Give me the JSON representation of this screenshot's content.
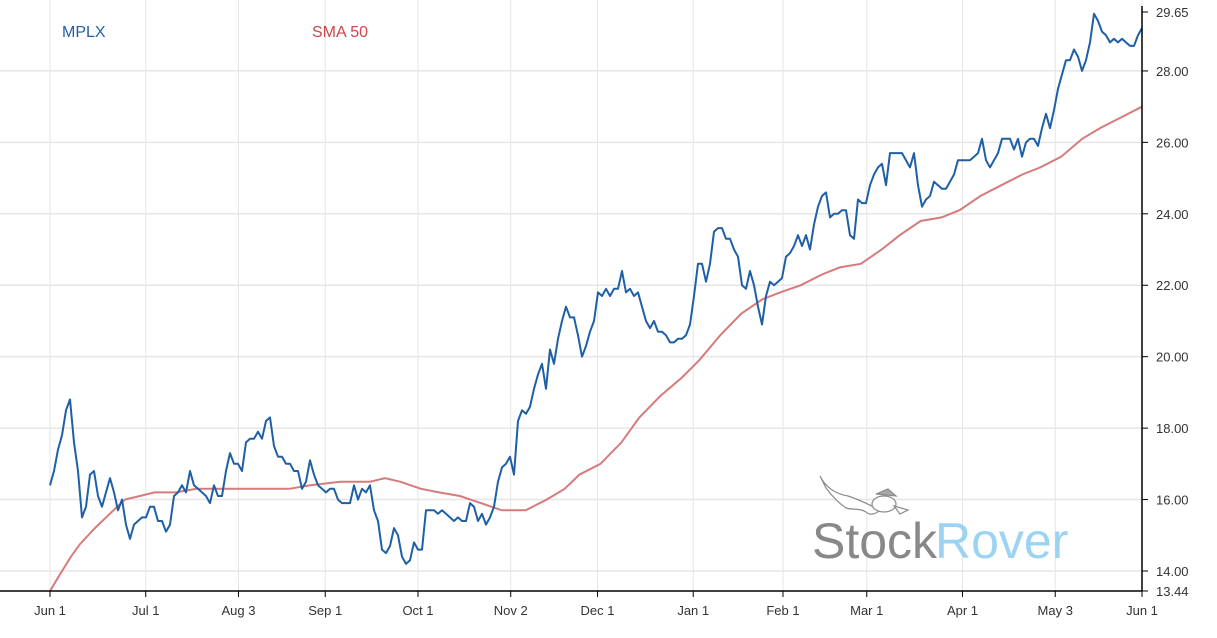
{
  "chart_data": {
    "type": "line",
    "title": "",
    "xlabel": "",
    "ylabel": "",
    "ylim": [
      13.44,
      29.65
    ],
    "xlim_days": [
      0,
      365
    ],
    "grid": true,
    "legend": {
      "placement": "top-left",
      "entries": [
        "MPLX",
        "SMA 50"
      ]
    },
    "x_ticks": [
      {
        "label": "Jun 1",
        "day": 0
      },
      {
        "label": "Jul 1",
        "day": 32
      },
      {
        "label": "Aug 3",
        "day": 63
      },
      {
        "label": "Sep 1",
        "day": 92
      },
      {
        "label": "Oct 1",
        "day": 123
      },
      {
        "label": "Nov 2",
        "day": 154
      },
      {
        "label": "Dec 1",
        "day": 183
      },
      {
        "label": "Jan 1",
        "day": 215
      },
      {
        "label": "Feb 1",
        "day": 245
      },
      {
        "label": "Mar 1",
        "day": 273
      },
      {
        "label": "Apr 1",
        "day": 305
      },
      {
        "label": "May 3",
        "day": 336
      },
      {
        "label": "Jun 1",
        "day": 365
      }
    ],
    "y_ticks": [
      {
        "label": "13.44",
        "value": 13.44
      },
      {
        "label": "14.00",
        "value": 14
      },
      {
        "label": "16.00",
        "value": 16
      },
      {
        "label": "18.00",
        "value": 18
      },
      {
        "label": "20.00",
        "value": 20
      },
      {
        "label": "22.00",
        "value": 22
      },
      {
        "label": "24.00",
        "value": 24
      },
      {
        "label": "26.00",
        "value": 26
      },
      {
        "label": "28.00",
        "value": 28
      },
      {
        "label": "29.65",
        "value": 29.65
      }
    ],
    "series": [
      {
        "name": "MPLX",
        "color": "#1f5fa6",
        "values": [
          16.4,
          16.8,
          17.4,
          17.8,
          18.5,
          18.8,
          17.6,
          16.8,
          15.5,
          15.8,
          16.7,
          16.8,
          16.1,
          15.8,
          16.2,
          16.6,
          16.2,
          15.7,
          16.0,
          15.3,
          14.9,
          15.3,
          15.4,
          15.5,
          15.5,
          15.8,
          15.8,
          15.4,
          15.4,
          15.1,
          15.3,
          16.1,
          16.2,
          16.4,
          16.2,
          16.8,
          16.4,
          16.3,
          16.2,
          16.1,
          15.9,
          16.4,
          16.1,
          16.1,
          16.8,
          17.3,
          17.0,
          17.0,
          16.8,
          17.6,
          17.7,
          17.7,
          17.9,
          17.7,
          18.2,
          18.3,
          17.5,
          17.2,
          17.2,
          17.0,
          17.0,
          16.8,
          16.8,
          16.3,
          16.5,
          17.1,
          16.7,
          16.4,
          16.3,
          16.2,
          16.3,
          16.3,
          16.0,
          15.9,
          15.9,
          15.9,
          16.4,
          16.0,
          16.3,
          16.2,
          16.4,
          15.7,
          15.4,
          14.6,
          14.5,
          14.7,
          15.2,
          15.0,
          14.4,
          14.2,
          14.3,
          14.8,
          14.6,
          14.6,
          15.7,
          15.7,
          15.7,
          15.6,
          15.7,
          15.6,
          15.5,
          15.4,
          15.5,
          15.4,
          15.4,
          15.9,
          15.8,
          15.4,
          15.6,
          15.3,
          15.5,
          15.8,
          16.5,
          16.9,
          17.0,
          17.2,
          16.7,
          18.2,
          18.5,
          18.4,
          18.6,
          19.1,
          19.5,
          19.8,
          19.1,
          20.2,
          19.8,
          20.5,
          21.0,
          21.4,
          21.1,
          21.1,
          20.6,
          20.0,
          20.3,
          20.7,
          21.0,
          21.8,
          21.7,
          21.9,
          21.7,
          21.9,
          21.9,
          22.4,
          21.8,
          21.9,
          21.7,
          21.8,
          21.4,
          21.0,
          20.8,
          21.0,
          20.7,
          20.7,
          20.6,
          20.4,
          20.4,
          20.5,
          20.5,
          20.6,
          20.9,
          21.7,
          22.6,
          22.6,
          22.1,
          22.6,
          23.5,
          23.6,
          23.6,
          23.3,
          23.3,
          23.0,
          22.8,
          22.0,
          21.9,
          22.4,
          22.0,
          21.4,
          20.9,
          21.7,
          22.1,
          22.0,
          22.1,
          22.2,
          22.8,
          22.9,
          23.1,
          23.4,
          23.1,
          23.4,
          23.0,
          23.7,
          24.2,
          24.5,
          24.6,
          23.9,
          24.0,
          24.0,
          24.1,
          24.1,
          23.4,
          23.3,
          24.4,
          24.3,
          24.3,
          24.8,
          25.1,
          25.3,
          25.4,
          24.8,
          25.7,
          25.7,
          25.7,
          25.7,
          25.5,
          25.3,
          25.7,
          24.8,
          24.2,
          24.4,
          24.5,
          24.9,
          24.8,
          24.7,
          24.7,
          24.9,
          25.1,
          25.5,
          25.5,
          25.5,
          25.5,
          25.6,
          25.7,
          26.1,
          25.5,
          25.3,
          25.5,
          25.7,
          26.1,
          26.1,
          26.1,
          25.8,
          26.1,
          25.6,
          26.0,
          26.1,
          26.1,
          25.9,
          26.4,
          26.8,
          26.4,
          26.9,
          27.5,
          27.9,
          28.3,
          28.3,
          28.6,
          28.4,
          28.0,
          28.3,
          28.8,
          29.6,
          29.4,
          29.1,
          29.0,
          28.8,
          28.9,
          28.8,
          28.9,
          28.8,
          28.7,
          28.7,
          29.0,
          29.2
        ]
      },
      {
        "name": "SMA 50",
        "color": "#d67b7b",
        "points": [
          [
            0,
            13.44
          ],
          [
            3,
            13.86
          ],
          [
            7,
            14.4
          ],
          [
            10,
            14.75
          ],
          [
            15,
            15.2
          ],
          [
            20,
            15.6
          ],
          [
            25,
            16.0
          ],
          [
            30,
            16.1
          ],
          [
            35,
            16.2
          ],
          [
            42,
            16.2
          ],
          [
            49,
            16.3
          ],
          [
            55,
            16.3
          ],
          [
            64,
            16.3
          ],
          [
            70,
            16.3
          ],
          [
            80,
            16.3
          ],
          [
            87,
            16.4
          ],
          [
            97,
            16.5
          ],
          [
            107,
            16.5
          ],
          [
            112,
            16.6
          ],
          [
            117,
            16.5
          ],
          [
            124,
            16.3
          ],
          [
            130,
            16.2
          ],
          [
            137,
            16.1
          ],
          [
            144,
            15.9
          ],
          [
            151,
            15.7
          ],
          [
            155,
            15.7
          ],
          [
            159,
            15.7
          ],
          [
            166,
            16.0
          ],
          [
            172,
            16.3
          ],
          [
            177,
            16.7
          ],
          [
            184,
            17.0
          ],
          [
            191,
            17.6
          ],
          [
            197,
            18.3
          ],
          [
            204,
            18.9
          ],
          [
            211,
            19.4
          ],
          [
            217,
            19.9
          ],
          [
            224,
            20.6
          ],
          [
            231,
            21.2
          ],
          [
            238,
            21.6
          ],
          [
            244,
            21.8
          ],
          [
            251,
            22.0
          ],
          [
            258,
            22.3
          ],
          [
            264,
            22.5
          ],
          [
            271,
            22.6
          ],
          [
            278,
            23.0
          ],
          [
            284,
            23.4
          ],
          [
            291,
            23.8
          ],
          [
            298,
            23.9
          ],
          [
            304,
            24.1
          ],
          [
            311,
            24.5
          ],
          [
            318,
            24.8
          ],
          [
            325,
            25.1
          ],
          [
            331,
            25.3
          ],
          [
            338,
            25.6
          ],
          [
            345,
            26.1
          ],
          [
            351,
            26.4
          ],
          [
            358,
            26.7
          ],
          [
            365,
            27.0
          ]
        ]
      }
    ]
  },
  "watermark": {
    "text_part1": "Stock",
    "text_part2": "Rover"
  }
}
